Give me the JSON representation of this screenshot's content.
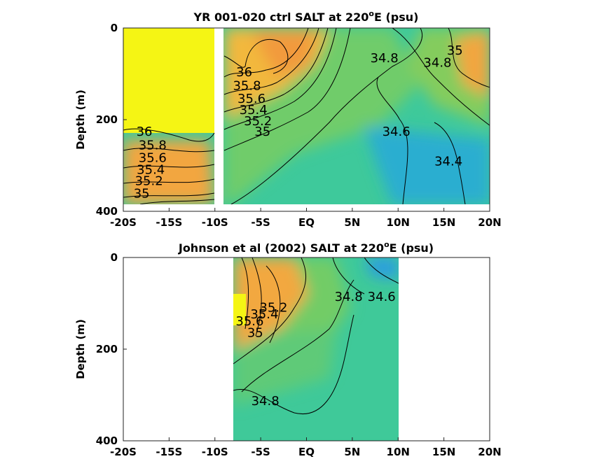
{
  "chart_data": [
    {
      "type": "heatmap",
      "title": "YR 001-020 ctrl SALT at 220",
      "title_sup": "o",
      "title_suffix": "E (psu)",
      "ylabel": "Depth (m)",
      "xlim": [
        -20,
        20
      ],
      "ylim": [
        0,
        400
      ],
      "y_reversed": true,
      "x_ticks": [
        -20,
        -15,
        -10,
        -5,
        0,
        5,
        10,
        15,
        20
      ],
      "x_tick_labels": [
        "-20S",
        "-15S",
        "-10S",
        "-5S",
        "EQ",
        "5N",
        "10N",
        "15N",
        "20N"
      ],
      "y_ticks": [
        0,
        200,
        400
      ],
      "y_tick_labels": [
        "0",
        "200",
        "400"
      ],
      "data_x_range": [
        -20,
        20
      ],
      "data_depth_range": [
        0,
        385
      ],
      "missing_x_band": [
        -10.2,
        -9.2
      ],
      "contour_labels": [
        {
          "text": "36",
          "x": -17.7,
          "depth": 235
        },
        {
          "text": "35.8",
          "x": -16.8,
          "depth": 265
        },
        {
          "text": "35.6",
          "x": -16.8,
          "depth": 292
        },
        {
          "text": "35.4",
          "x": -17.0,
          "depth": 318
        },
        {
          "text": "35.2",
          "x": -17.2,
          "depth": 343
        },
        {
          "text": "35",
          "x": -18.0,
          "depth": 370
        },
        {
          "text": "36",
          "x": -6.8,
          "depth": 105
        },
        {
          "text": "35.8",
          "x": -6.5,
          "depth": 135
        },
        {
          "text": "35.6",
          "x": -6.0,
          "depth": 163
        },
        {
          "text": "35.4",
          "x": -5.8,
          "depth": 188
        },
        {
          "text": "35.2",
          "x": -5.3,
          "depth": 212
        },
        {
          "text": "35",
          "x": -4.8,
          "depth": 235
        },
        {
          "text": "34.8",
          "x": 8.5,
          "depth": 75
        },
        {
          "text": "34.8",
          "x": 14.3,
          "depth": 85
        },
        {
          "text": "35",
          "x": 16.2,
          "depth": 58
        },
        {
          "text": "34.6",
          "x": 9.8,
          "depth": 235
        },
        {
          "text": "34.4",
          "x": 15.5,
          "depth": 300
        }
      ],
      "colorscale": {
        "low": "#1e9be6",
        "mid": "#39c9a0",
        "high": "#fafa14",
        "range_psu": [
          34.2,
          36.2
        ]
      }
    },
    {
      "type": "heatmap",
      "title": "Johnson et al (2002) SALT at 220",
      "title_sup": "o",
      "title_suffix": "E (psu)",
      "ylabel": "Depth (m)",
      "xlim": [
        -20,
        20
      ],
      "ylim": [
        0,
        400
      ],
      "y_reversed": true,
      "x_ticks": [
        -20,
        -15,
        -10,
        -5,
        0,
        5,
        10,
        15,
        20
      ],
      "x_tick_labels": [
        "-20S",
        "-15S",
        "-10S",
        "-5S",
        "EQ",
        "5N",
        "10N",
        "15N",
        "20N"
      ],
      "y_ticks": [
        0,
        200,
        400
      ],
      "y_tick_labels": [
        "0",
        "200",
        "400"
      ],
      "data_x_range": [
        -8,
        10
      ],
      "data_depth_range": [
        0,
        400
      ],
      "contour_labels": [
        {
          "text": "35.6",
          "x": -6.2,
          "depth": 148
        },
        {
          "text": "35.4",
          "x": -4.6,
          "depth": 133
        },
        {
          "text": "35.2",
          "x": -3.6,
          "depth": 118
        },
        {
          "text": "35",
          "x": -5.6,
          "depth": 173
        },
        {
          "text": "34.8",
          "x": 4.6,
          "depth": 95
        },
        {
          "text": "34.6",
          "x": 8.2,
          "depth": 95
        },
        {
          "text": "34.8",
          "x": -4.5,
          "depth": 322
        }
      ],
      "colorscale": {
        "low": "#1e9be6",
        "mid": "#39c9a0",
        "high": "#fafa14",
        "range_psu": [
          34.2,
          36.2
        ]
      }
    }
  ]
}
